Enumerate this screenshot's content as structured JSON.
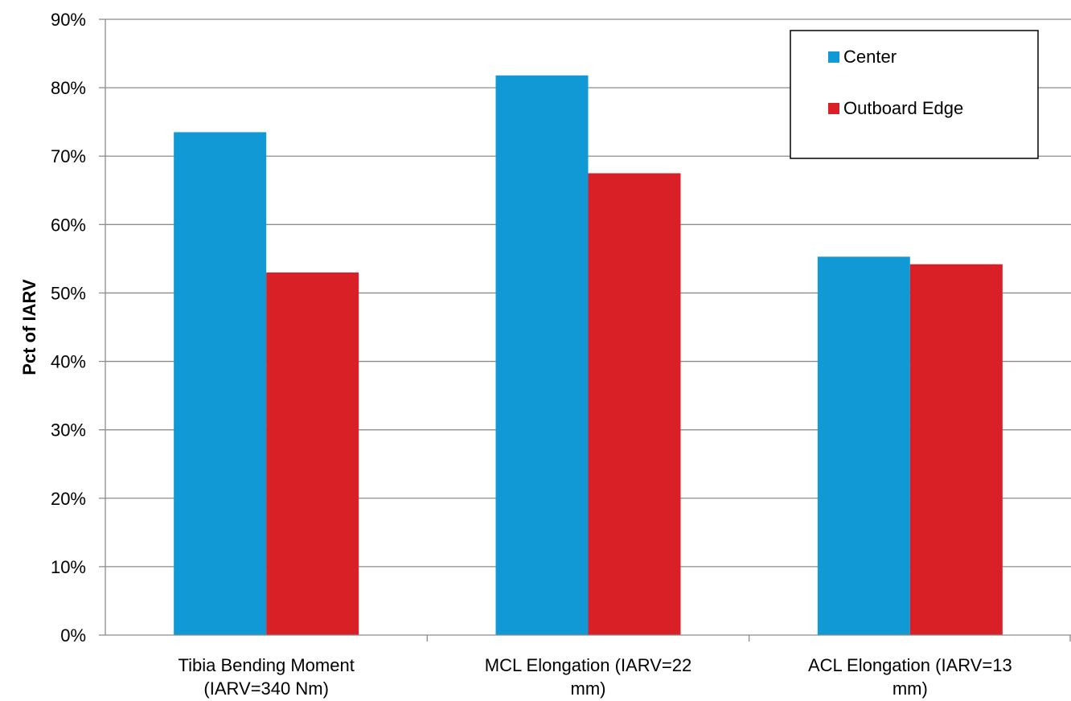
{
  "chart_data": {
    "type": "bar",
    "title": "",
    "xlabel": "",
    "ylabel": "Pct of IARV",
    "ylim": [
      0,
      90
    ],
    "ytick_step": 10,
    "ytick_labels": [
      "0%",
      "10%",
      "20%",
      "30%",
      "40%",
      "50%",
      "60%",
      "70%",
      "80%",
      "90%"
    ],
    "grid": true,
    "legend_position": "top-right",
    "categories": [
      [
        "Tibia Bending Moment",
        "(IARV=340 Nm)"
      ],
      [
        "MCL Elongation (IARV=22",
        "mm)"
      ],
      [
        "ACL Elongation (IARV=13",
        "mm)"
      ]
    ],
    "series": [
      {
        "name": "Center",
        "color": "#1199d6",
        "values": [
          73.5,
          81.8,
          55.3
        ]
      },
      {
        "name": "Outboard Edge",
        "color": "#d92027",
        "values": [
          53.0,
          67.5,
          54.2
        ]
      }
    ]
  }
}
